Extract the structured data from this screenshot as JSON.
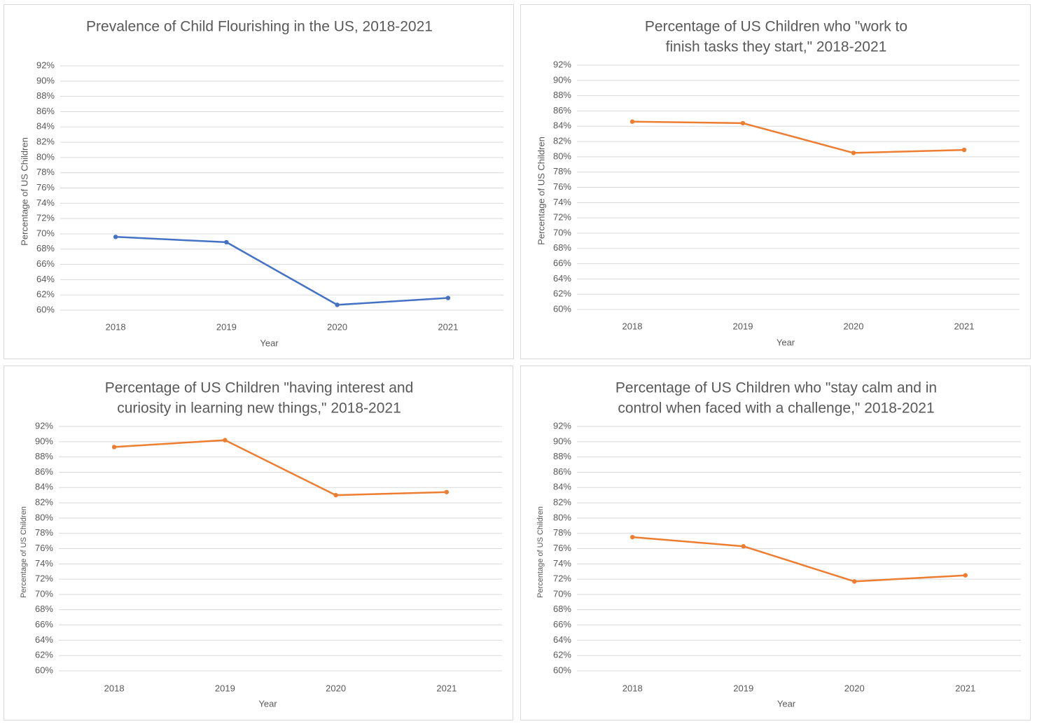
{
  "chart_data": [
    {
      "type": "line",
      "title": "Prevalence of Child Flourishing in the US, 2018-2021",
      "xlabel": "Year",
      "ylabel": "Percentage of US Children",
      "categories": [
        "2018",
        "2019",
        "2020",
        "2021"
      ],
      "series": [
        {
          "values": [
            69.6,
            68.9,
            60.7,
            61.6
          ]
        }
      ],
      "ylim": [
        60,
        92
      ],
      "ytick_step": 2,
      "ytick_format": "percent",
      "grid": true,
      "color": "#4472C4"
    },
    {
      "type": "line",
      "title": "Percentage of US Children who \"work to finish tasks they start,\" 2018-2021",
      "xlabel": "Year",
      "ylabel": "Percentage of US Children",
      "categories": [
        "2018",
        "2019",
        "2020",
        "2021"
      ],
      "series": [
        {
          "values": [
            84.6,
            84.4,
            80.5,
            80.9
          ]
        }
      ],
      "ylim": [
        60,
        92
      ],
      "ytick_step": 2,
      "ytick_format": "percent",
      "grid": true,
      "color": "#ED7D31"
    },
    {
      "type": "line",
      "title": "Percentage of US Children \"having interest and curiosity in learning new things,\" 2018-2021",
      "xlabel": "Year",
      "ylabel": "Percentage of US Children",
      "categories": [
        "2018",
        "2019",
        "2020",
        "2021"
      ],
      "series": [
        {
          "values": [
            89.3,
            90.2,
            83.0,
            83.4
          ]
        }
      ],
      "ylim": [
        60,
        92
      ],
      "ytick_step": 2,
      "ytick_format": "percent",
      "grid": true,
      "color": "#ED7D31"
    },
    {
      "type": "line",
      "title": "Percentage of US Children who \"stay calm and in control when faced with a challenge,\" 2018-2021",
      "xlabel": "Year",
      "ylabel": "Percentage of US Children",
      "categories": [
        "2018",
        "2019",
        "2020",
        "2021"
      ],
      "series": [
        {
          "values": [
            77.5,
            76.3,
            71.7,
            72.5
          ]
        }
      ],
      "ylim": [
        60,
        92
      ],
      "ytick_step": 2,
      "ytick_format": "percent",
      "grid": true,
      "color": "#ED7D31"
    }
  ]
}
